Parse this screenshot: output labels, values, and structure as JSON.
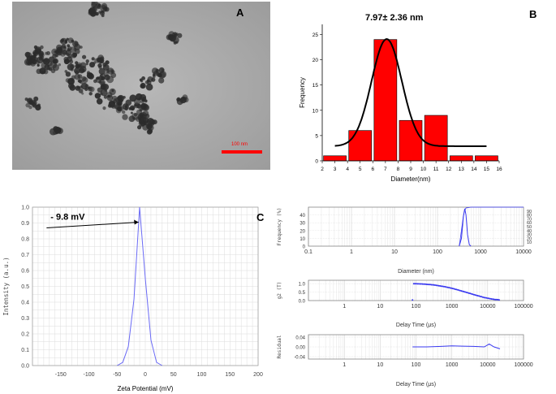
{
  "panels": {
    "A": {
      "letter": "A",
      "scale_bar_label": "100 nm"
    },
    "B": {
      "letter": "B"
    },
    "C": {
      "letter": "C"
    }
  },
  "colors": {
    "histogram_bar": "#ff0000",
    "zeta_line": "#6a6af5",
    "dls_line": "#3a3af0",
    "fit_curve": "#000000"
  },
  "chart_data": [
    {
      "id": "size-histogram",
      "type": "bar",
      "title": "7.97± 2.36 nm",
      "xlabel": "Diameter(nm)",
      "ylabel": "Frequency",
      "xlim": [
        2,
        16
      ],
      "ylim": [
        0,
        27
      ],
      "xticks": [
        "2",
        "3",
        "4",
        "5",
        "6",
        "7",
        "8",
        "9",
        "10",
        "11",
        "12",
        "13",
        "14",
        "15",
        "16"
      ],
      "yticks": [
        "0",
        "5",
        "10",
        "15",
        "20",
        "25"
      ],
      "bars": [
        {
          "x": 3,
          "value": 1
        },
        {
          "x": 5,
          "value": 6
        },
        {
          "x": 7,
          "value": 24
        },
        {
          "x": 9,
          "value": 8
        },
        {
          "x": 11,
          "value": 9
        },
        {
          "x": 13,
          "value": 1
        },
        {
          "x": 15,
          "value": 1
        }
      ],
      "bar_width": 1.8,
      "fit": {
        "type": "gaussian",
        "baseline": 2.9,
        "amplitude": 21.2,
        "center": 7.1,
        "sigma": 1.2,
        "x_from": 3,
        "x_to": 15
      }
    },
    {
      "id": "zeta-potential",
      "type": "line",
      "xlabel": "Zeta Potential (mV)",
      "ylabel": "Intensity (a.u.)",
      "xlim": [
        -200,
        200
      ],
      "ylim": [
        0,
        1.0
      ],
      "xticks": [
        "-150",
        "-100",
        "-50",
        "0",
        "50",
        "100",
        "150",
        "200"
      ],
      "yticks": [
        "0.0",
        "0.1",
        "0.2",
        "0.3",
        "0.4",
        "0.5",
        "0.6",
        "0.7",
        "0.8",
        "0.9",
        "1.0"
      ],
      "annotation": "- 9.8 mV",
      "x": [
        -50,
        -40,
        -30,
        -20,
        -10,
        0,
        10,
        20,
        30
      ],
      "y": [
        0,
        0.02,
        0.12,
        0.42,
        1.0,
        0.55,
        0.16,
        0.02,
        0
      ]
    },
    {
      "id": "dls-size",
      "type": "line",
      "xlabel": "Diameter (nm)",
      "ylabel": "Frequency (%)",
      "ylabel_right": "",
      "xscale": "log",
      "xlim": [
        0.1,
        10000
      ],
      "ylim": [
        0,
        50
      ],
      "xticks": [
        "0.1",
        "1",
        "10",
        "100",
        "1000",
        "10000"
      ],
      "yticks": [
        "0",
        "10",
        "20",
        "30",
        "40"
      ],
      "yticks_right": [
        "10",
        "20",
        "30",
        "40",
        "50",
        "60",
        "70",
        "80",
        "90"
      ],
      "x": [
        320,
        360,
        400,
        430,
        460,
        500,
        550,
        600
      ],
      "y": [
        0,
        10,
        38,
        48,
        40,
        15,
        2,
        0
      ]
    },
    {
      "id": "dls-correlation",
      "type": "scatter",
      "xlabel": "Delay Time (μs)",
      "ylabel": "g2 (T)",
      "xscale": "log",
      "xlim": [
        0.1,
        100000
      ],
      "ylim": [
        0,
        1.2
      ],
      "xticks": [
        "1",
        "10",
        "100",
        "1000",
        "10000",
        "100000"
      ],
      "yticks": [
        "0.0",
        "0.5",
        "1.0"
      ],
      "x": [
        80,
        150,
        300,
        600,
        1000,
        2000,
        4000,
        8000,
        15000,
        22000
      ],
      "y": [
        1.0,
        0.98,
        0.93,
        0.83,
        0.73,
        0.55,
        0.36,
        0.18,
        0.07,
        0.04
      ]
    },
    {
      "id": "dls-residual",
      "type": "line",
      "xlabel": "Delay Time (μs)",
      "ylabel": "Residual",
      "xscale": "log",
      "xlim": [
        0.1,
        100000
      ],
      "ylim": [
        -0.05,
        0.05
      ],
      "xticks": [
        "1",
        "10",
        "100",
        "1000",
        "10000",
        "100000"
      ],
      "yticks": [
        "0.04",
        "0.00",
        "-0.04"
      ],
      "x": [
        80,
        200,
        500,
        1000,
        2000,
        4000,
        8000,
        11000,
        15000,
        22000
      ],
      "y": [
        0.0,
        0.0,
        0.002,
        0.004,
        0.003,
        0.002,
        0.0,
        0.012,
        0.0,
        -0.008
      ]
    }
  ]
}
